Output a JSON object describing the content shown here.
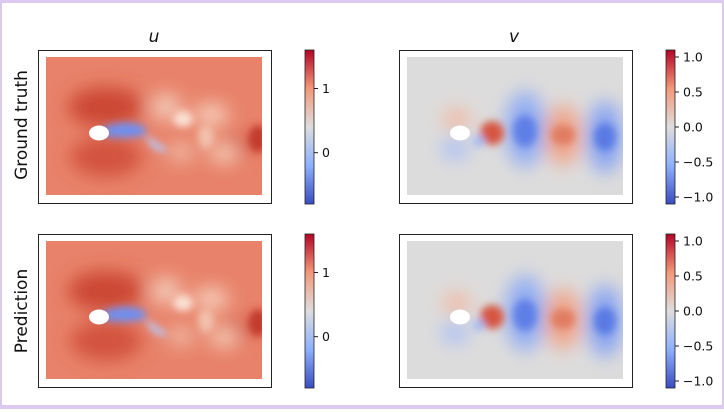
{
  "columns": [
    "u",
    "v"
  ],
  "rows": [
    "Ground truth",
    "Prediction"
  ],
  "colors": {
    "low": "#3b4cc0",
    "mid": "#dddddd",
    "high": "#b40426",
    "field_u_background": "#e8826a",
    "field_v_background": "#dddcdc"
  },
  "chart_data": {
    "type": "heatmap",
    "colormap": "coolwarm",
    "panels": [
      {
        "row": "Ground truth",
        "column": "u",
        "cbar_ticks": [
          "0",
          "1"
        ],
        "cbar_range": [
          -0.8,
          1.6
        ]
      },
      {
        "row": "Ground truth",
        "column": "v",
        "cbar_ticks": [
          "−1.0",
          "−0.5",
          "0.0",
          "0.5",
          "1.0"
        ],
        "cbar_range": [
          -1.1,
          1.1
        ]
      },
      {
        "row": "Prediction",
        "column": "u",
        "cbar_ticks": [
          "0",
          "1"
        ],
        "cbar_range": [
          -0.8,
          1.6
        ]
      },
      {
        "row": "Prediction",
        "column": "v",
        "cbar_ticks": [
          "−1.0",
          "−0.5",
          "0.0",
          "0.5",
          "1.0"
        ],
        "cbar_range": [
          -1.1,
          1.1
        ]
      }
    ]
  }
}
